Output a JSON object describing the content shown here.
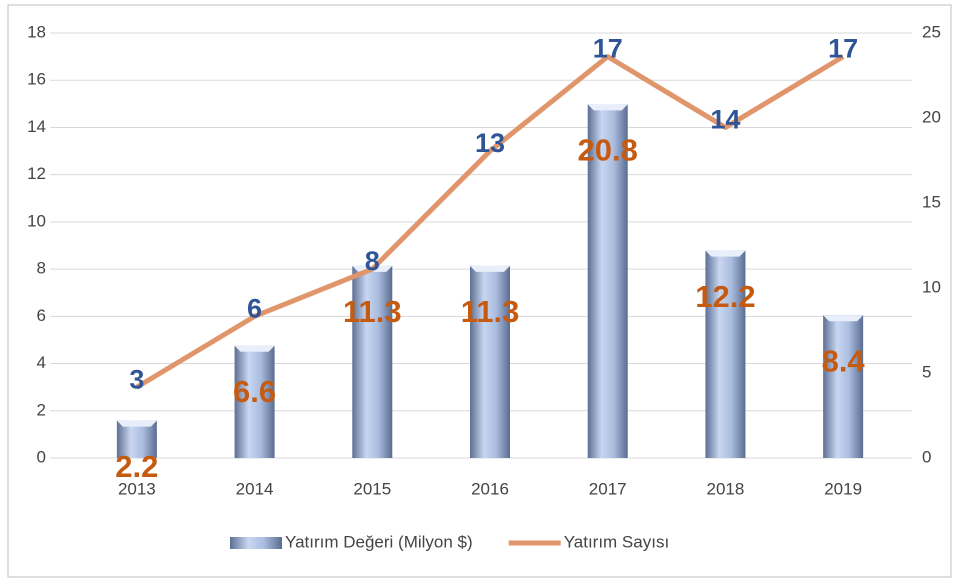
{
  "chart_data": {
    "type": "bar_line",
    "categories": [
      "2013",
      "2014",
      "2015",
      "2016",
      "2017",
      "2018",
      "2019"
    ],
    "series": [
      {
        "name": "Yatırım Değeri (Milyon $)",
        "type": "bar",
        "axis": "y2",
        "color": "#9fb3d9",
        "values": [
          2.2,
          6.6,
          11.3,
          11.3,
          20.8,
          12.2,
          8.4
        ]
      },
      {
        "name": "Yatırım Sayısı",
        "type": "line",
        "axis": "y",
        "color": "#e0956b",
        "values": [
          3,
          6,
          8,
          13,
          17,
          14,
          17
        ]
      }
    ],
    "ylim": [
      0,
      18
    ],
    "yticks": [
      0,
      2,
      4,
      6,
      8,
      10,
      12,
      14,
      16,
      18
    ],
    "y2lim": [
      0,
      25
    ],
    "y2ticks": [
      0,
      5,
      10,
      15,
      20,
      25
    ],
    "grid": true,
    "legend": "bottom"
  }
}
